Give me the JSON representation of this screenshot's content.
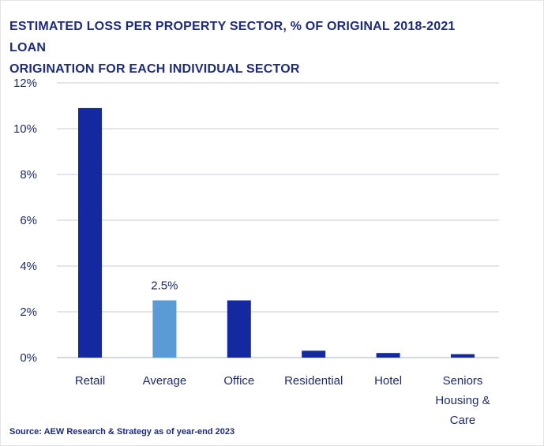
{
  "title_line1": "ESTIMATED LOSS PER PROPERTY SECTOR, % OF ORIGINAL 2018-2021 LOAN",
  "title_line2": "ORIGINATION FOR EACH INDIVIDUAL SECTOR",
  "source": "Source: AEW Research & Strategy as of year-end 2023",
  "chart_data": {
    "type": "bar",
    "title": "ESTIMATED LOSS PER PROPERTY SECTOR, % OF ORIGINAL 2018-2021 LOAN ORIGINATION FOR EACH INDIVIDUAL SECTOR",
    "categories": [
      [
        "Retail"
      ],
      [
        "Average"
      ],
      [
        "Office"
      ],
      [
        "Residential"
      ],
      [
        "Hotel"
      ],
      [
        "Seniors",
        "Housing &",
        "Care"
      ]
    ],
    "values": [
      10.9,
      2.5,
      2.5,
      0.3,
      0.2,
      0.15
    ],
    "colors": [
      "#1428a0",
      "#5b9bd5",
      "#1428a0",
      "#1428a0",
      "#1428a0",
      "#1428a0"
    ],
    "data_labels": [
      null,
      "2.5%",
      null,
      null,
      null,
      null
    ],
    "ylim": [
      0,
      12
    ],
    "yticks": [
      "0%",
      "2%",
      "4%",
      "6%",
      "8%",
      "10%",
      "12%"
    ],
    "ytick_values": [
      0,
      2,
      4,
      6,
      8,
      10,
      12
    ],
    "grid": true,
    "legend": false
  }
}
